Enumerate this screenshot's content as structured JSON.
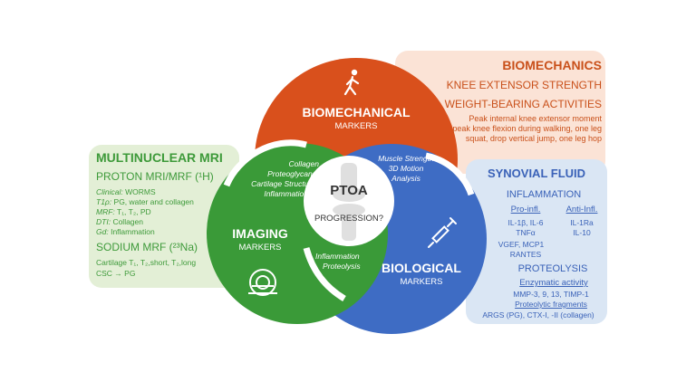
{
  "colors": {
    "biomechanical": "#d9501c",
    "imaging": "#3a9a38",
    "biological": "#3e6cc4",
    "center": "#ffffff"
  },
  "biomechanics_panel": {
    "title": "BIOMECHANICS",
    "line1": "KNEE EXTENSOR STRENGTH",
    "line2": "WEIGHT-BEARING ACTIVITIES",
    "detail1": "Peak internal knee extensor moment",
    "detail2": "peak knee flexion during walking, one leg",
    "detail3": "squat, drop vertical jump, one leg hop"
  },
  "mri_panel": {
    "title": "MULTINUCLEAR MRI",
    "proton": "PROTON MRI/MRF (¹H)",
    "clinical_label": "Clinical:",
    "clinical_value": "WORMS",
    "t1p_label": "T1ρ:",
    "t1p_value": "PG, water and collagen",
    "mrf_label": "MRF:",
    "mrf_value": "T₁, T₂, PD",
    "dti_label": "DTI:",
    "dti_value": "Collagen",
    "gd_label": "Gd:",
    "gd_value": "Inflammation",
    "sodium": "SODIUM MRF (²³Na)",
    "cartilage": "Cartilage T₁, T₂,short, T₂,long",
    "csc": "CSC → PG"
  },
  "synovial_panel": {
    "title": "SYNOVIAL FLUID",
    "inflammation": "INFLAMMATION",
    "pro_header": "Pro-infl.",
    "anti_header": "Anti-Infl.",
    "pro_line1": "IL-1β, IL-6",
    "pro_line2": "TNFα",
    "pro_line3": "VGEF, MCP1",
    "pro_line4": "RANTES",
    "anti_line1": "IL-1Ra",
    "anti_line2": "IL-10",
    "proteolysis": "PROTEOLYSIS",
    "enzymatic": "Enzymatic activity",
    "mmp": "MMP-3, 9, 13, TIMP-1",
    "fragments": "Proteolytic fragments",
    "args": "ARGS (PG), CTX-I, -II (collagen)"
  },
  "biomechanical_circle": {
    "title": "BIOMECHANICAL",
    "subtitle": "MARKERS",
    "note1": "Muscle Strength",
    "note2": "3D Motion",
    "note3": "Analysis",
    "icon": "walking-person-icon"
  },
  "imaging_circle": {
    "title": "IMAGING",
    "subtitle": "MARKERS",
    "note1": "Collagen",
    "note2": "Proteoglycans",
    "note3": "Cartilage Structure",
    "note4": "Inflammation",
    "icon": "mri-scanner-icon"
  },
  "biological_circle": {
    "title": "BIOLOGICAL",
    "subtitle": "MARKERS",
    "note1": "Inflammation",
    "note2": "Proteolysis",
    "icon": "syringe-icon"
  },
  "center": {
    "title": "PTOA",
    "subtitle": "PROGRESSION?",
    "icon": "knee-joint-icon"
  }
}
